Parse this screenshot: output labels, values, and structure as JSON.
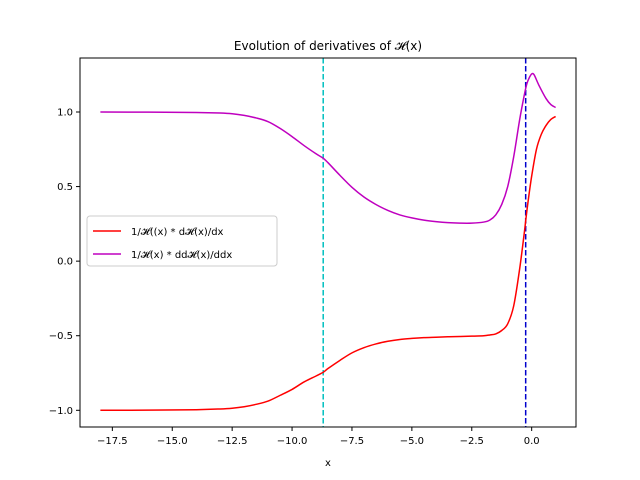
{
  "chart_data": {
    "type": "line",
    "title": "Evolution of derivatives of 𝓗(x)",
    "xlabel": "x",
    "ylabel": "",
    "xlim": [
      -18.85,
      1.85
    ],
    "ylim": [
      -1.112,
      1.362
    ],
    "xticks": [
      -17.5,
      -15.0,
      -12.5,
      -10.0,
      -7.5,
      -5.0,
      -2.5,
      0.0
    ],
    "xtick_labels": [
      "−17.5",
      "−15.0",
      "−12.5",
      "−10.0",
      "−7.5",
      "−5.0",
      "−2.5",
      "0.0"
    ],
    "yticks": [
      -1.0,
      -0.5,
      0.0,
      0.5,
      1.0
    ],
    "ytick_labels": [
      "−1.0",
      "−0.5",
      "0.0",
      "0.5",
      "1.0"
    ],
    "grid": false,
    "legend_placement": "center-left",
    "series": [
      {
        "name": "1/𝓗((x) * d𝓗(x)/dx",
        "color": "#ff0000",
        "x": [
          -18.0,
          -16.0,
          -14.0,
          -13.0,
          -12.5,
          -12.0,
          -11.5,
          -11.0,
          -10.5,
          -10.0,
          -9.5,
          -9.0,
          -8.7,
          -8.5,
          -8.0,
          -7.5,
          -7.0,
          -6.5,
          -6.0,
          -5.5,
          -5.0,
          -4.5,
          -4.0,
          -3.5,
          -3.0,
          -2.5,
          -2.0,
          -1.75,
          -1.5,
          -1.25,
          -1.0,
          -0.75,
          -0.5,
          -0.3,
          -0.25,
          -0.15,
          0.0,
          0.2,
          0.4,
          0.6,
          0.8,
          1.0
        ],
        "y": [
          -1.0,
          -0.999,
          -0.996,
          -0.991,
          -0.986,
          -0.976,
          -0.96,
          -0.938,
          -0.9,
          -0.86,
          -0.81,
          -0.77,
          -0.745,
          -0.72,
          -0.665,
          -0.615,
          -0.58,
          -0.555,
          -0.537,
          -0.525,
          -0.518,
          -0.513,
          -0.51,
          -0.507,
          -0.505,
          -0.503,
          -0.5,
          -0.495,
          -0.488,
          -0.465,
          -0.42,
          -0.3,
          -0.05,
          0.2,
          0.27,
          0.4,
          0.57,
          0.75,
          0.85,
          0.91,
          0.95,
          0.97
        ]
      },
      {
        "name": "1/𝓗(x) * dd𝓗(x)/ddx",
        "color": "#bf00bf",
        "x": [
          -18.0,
          -16.0,
          -14.0,
          -13.0,
          -12.5,
          -12.0,
          -11.5,
          -11.0,
          -10.5,
          -10.0,
          -9.5,
          -9.0,
          -8.7,
          -8.5,
          -8.0,
          -7.5,
          -7.0,
          -6.5,
          -6.0,
          -5.5,
          -5.0,
          -4.5,
          -4.0,
          -3.5,
          -3.0,
          -2.5,
          -2.0,
          -1.75,
          -1.5,
          -1.25,
          -1.0,
          -0.75,
          -0.5,
          -0.3,
          -0.2,
          -0.1,
          0.0,
          0.1,
          0.3,
          0.6,
          0.8,
          1.0
        ],
        "y": [
          1.0,
          0.999,
          0.997,
          0.993,
          0.988,
          0.977,
          0.96,
          0.935,
          0.89,
          0.835,
          0.775,
          0.72,
          0.69,
          0.66,
          0.575,
          0.495,
          0.43,
          0.38,
          0.34,
          0.31,
          0.29,
          0.275,
          0.265,
          0.258,
          0.255,
          0.255,
          0.262,
          0.275,
          0.31,
          0.38,
          0.5,
          0.7,
          0.95,
          1.12,
          1.19,
          1.23,
          1.255,
          1.25,
          1.18,
          1.09,
          1.05,
          1.03
        ]
      }
    ],
    "vlines": [
      {
        "x": -8.7,
        "color": "#00bfbf",
        "style": "dashed"
      },
      {
        "x": -0.25,
        "color": "#0000cc",
        "style": "dashed"
      }
    ]
  }
}
